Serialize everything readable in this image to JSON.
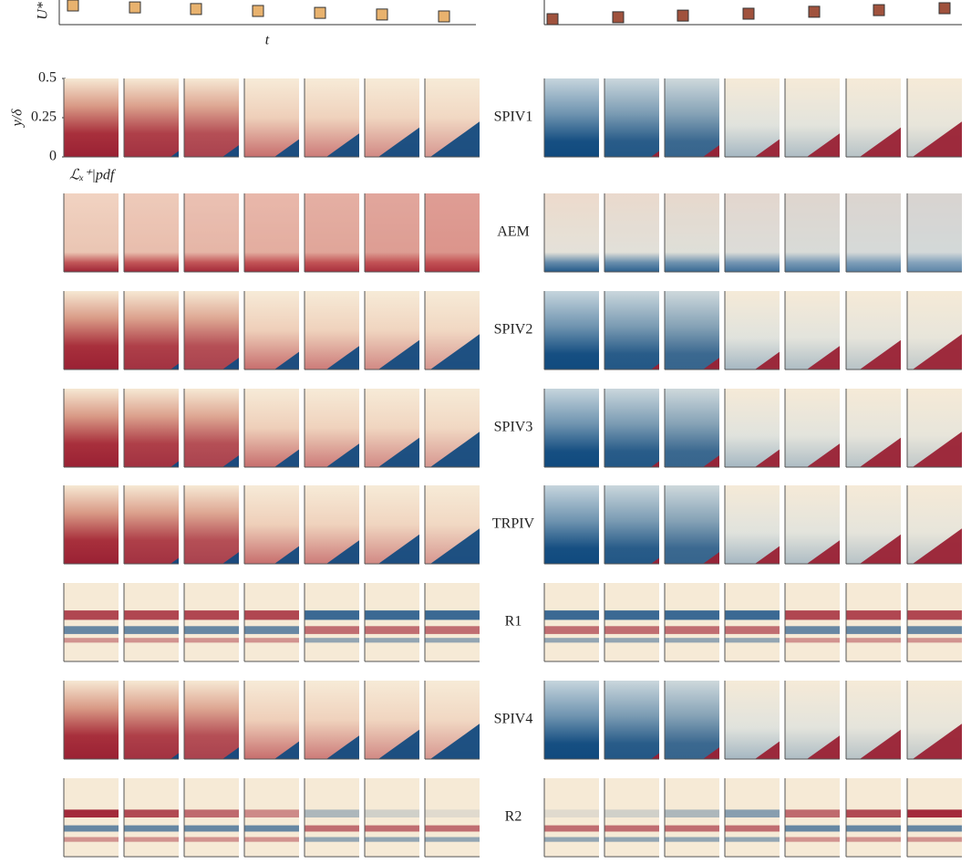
{
  "top": {
    "xlabel": "t",
    "ylabel": "U*",
    "ylim": [
      0,
      1
    ],
    "left": {
      "color": "#e8b26e",
      "values": [
        0.8,
        0.73,
        0.67,
        0.6,
        0.53,
        0.47,
        0.4
      ]
    },
    "right": {
      "color": "#a0523d",
      "values": [
        0.3,
        0.37,
        0.43,
        0.5,
        0.57,
        0.63,
        0.7
      ]
    }
  },
  "panels": {
    "ylabel": "y/δ",
    "ylim": [
      0,
      0.5
    ],
    "yticks": [
      0.5,
      0.25,
      0
    ],
    "colorbar_label": "ℒₓ⁺|pdf"
  },
  "rows": [
    "SPIV1",
    "AEM",
    "SPIV2",
    "SPIV3",
    "TRPIV",
    "R1",
    "SPIV4",
    "R2"
  ]
}
